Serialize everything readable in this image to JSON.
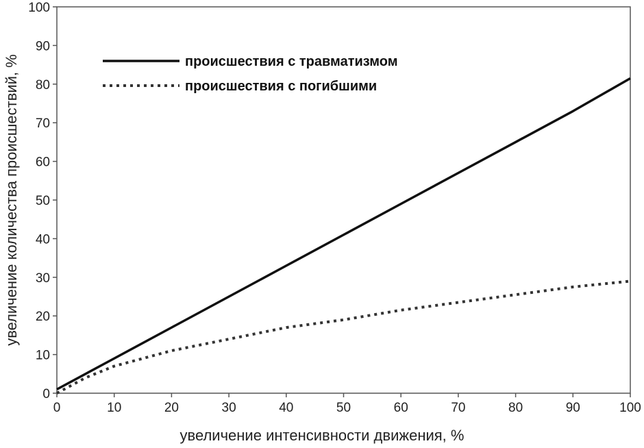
{
  "chart_data": {
    "type": "line",
    "title": "",
    "xlabel": "увеличение интенсивности движения, %",
    "ylabel": "увеличение количества происшествий, %",
    "xlim": [
      0,
      100
    ],
    "ylim": [
      0,
      100
    ],
    "xticks": [
      "0",
      "10",
      "20",
      "30",
      "40",
      "50",
      "60",
      "70",
      "80",
      "90",
      "100"
    ],
    "yticks": [
      "0",
      "10",
      "20",
      "30",
      "40",
      "50",
      "60",
      "70",
      "80",
      "90",
      "100"
    ],
    "grid": false,
    "legend_position": "top-left",
    "series": [
      {
        "name": "происшествия с травматизмом",
        "style": "solid",
        "color": "#111111",
        "x": [
          0,
          10,
          20,
          30,
          40,
          50,
          60,
          70,
          80,
          90,
          100
        ],
        "y": [
          1,
          9,
          17,
          25,
          33,
          41,
          49,
          57,
          65,
          73,
          81.5
        ]
      },
      {
        "name": "происшествия с погибшими",
        "style": "dotted",
        "color": "#333333",
        "x": [
          0,
          5,
          10,
          20,
          30,
          40,
          50,
          60,
          70,
          80,
          90,
          100
        ],
        "y": [
          0,
          4,
          7,
          11,
          14,
          17,
          19,
          21.5,
          23.5,
          25.5,
          27.5,
          29
        ]
      }
    ]
  }
}
